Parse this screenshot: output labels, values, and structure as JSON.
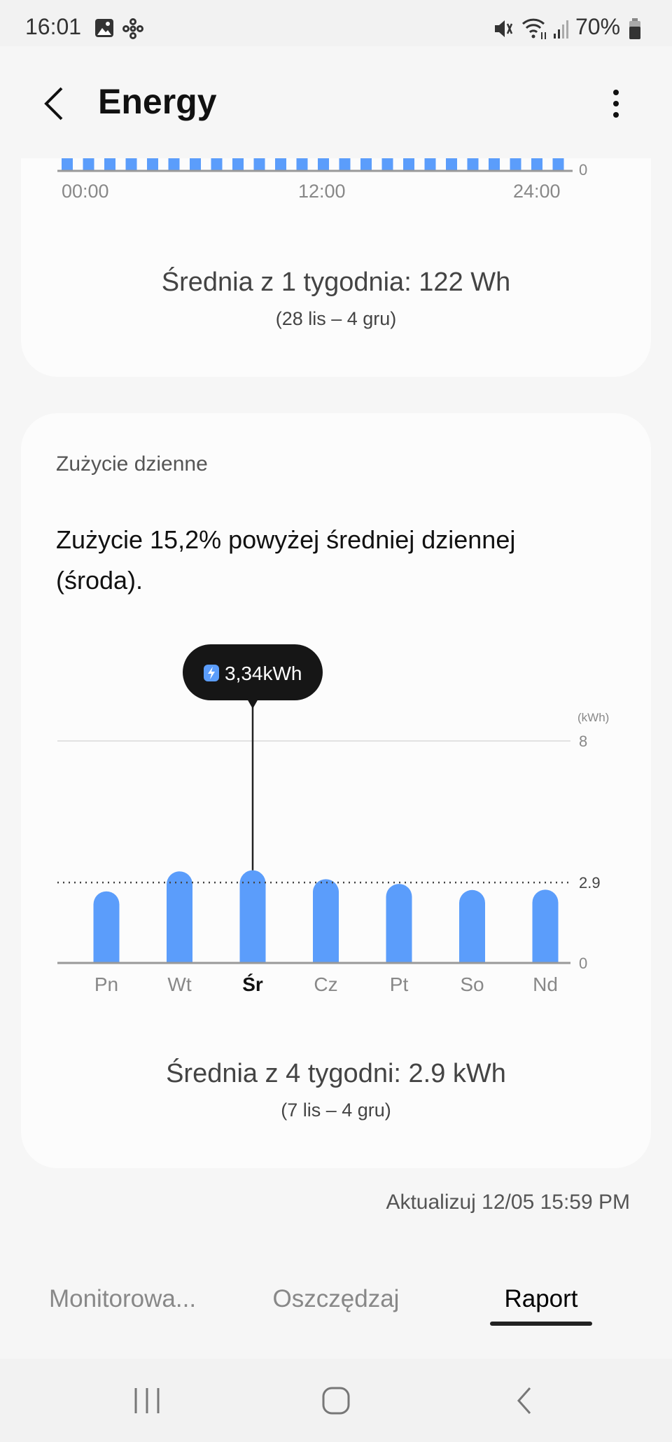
{
  "status_bar": {
    "time": "16:01",
    "battery": "70%",
    "icons": [
      "gallery-icon",
      "network-icon",
      "mute-icon",
      "wifi-icon",
      "signal-icon",
      "battery-icon"
    ]
  },
  "header": {
    "title": "Energy",
    "back_icon": "chevron-left-icon",
    "menu_icon": "more-vertical-icon"
  },
  "hourly_card": {
    "x_ticks": [
      "00:00",
      "12:00",
      "24:00"
    ],
    "y_tick": "0",
    "average_text": "Średnia z 1 tygodnia: 122 Wh",
    "average_range": "(28 lis – 4 gru)"
  },
  "daily_card": {
    "section_title": "Zużycie dzienne",
    "headline": "Zużycie 15,2% powyżej średniej dziennej (środa).",
    "average_text": "Średnia z 4 tygodni: 2.9 kWh",
    "average_range": "(7 lis – 4 gru)"
  },
  "chart_data": {
    "type": "bar",
    "categories": [
      "Pn",
      "Wt",
      "Śr",
      "Cz",
      "Pt",
      "So",
      "Nd"
    ],
    "values": [
      2.58,
      3.3,
      3.34,
      3.02,
      2.85,
      2.63,
      2.64
    ],
    "selected": "Śr",
    "tooltip": "3,34kWh",
    "unit_label": "(kWh)",
    "y_ticks": [
      "8",
      "2.9",
      "0"
    ],
    "ylim": [
      0,
      8
    ],
    "average_line": 2.9,
    "bar_color": "#5b9dfb"
  },
  "updated": "Aktualizuj 12/05 15:59 PM",
  "tabs": [
    {
      "label": "Monitorowa...",
      "active": false
    },
    {
      "label": "Oszczędzaj",
      "active": false
    },
    {
      "label": "Raport",
      "active": true
    }
  ],
  "nav": {
    "icons": [
      "recent-apps-icon",
      "home-icon",
      "back-icon"
    ]
  }
}
